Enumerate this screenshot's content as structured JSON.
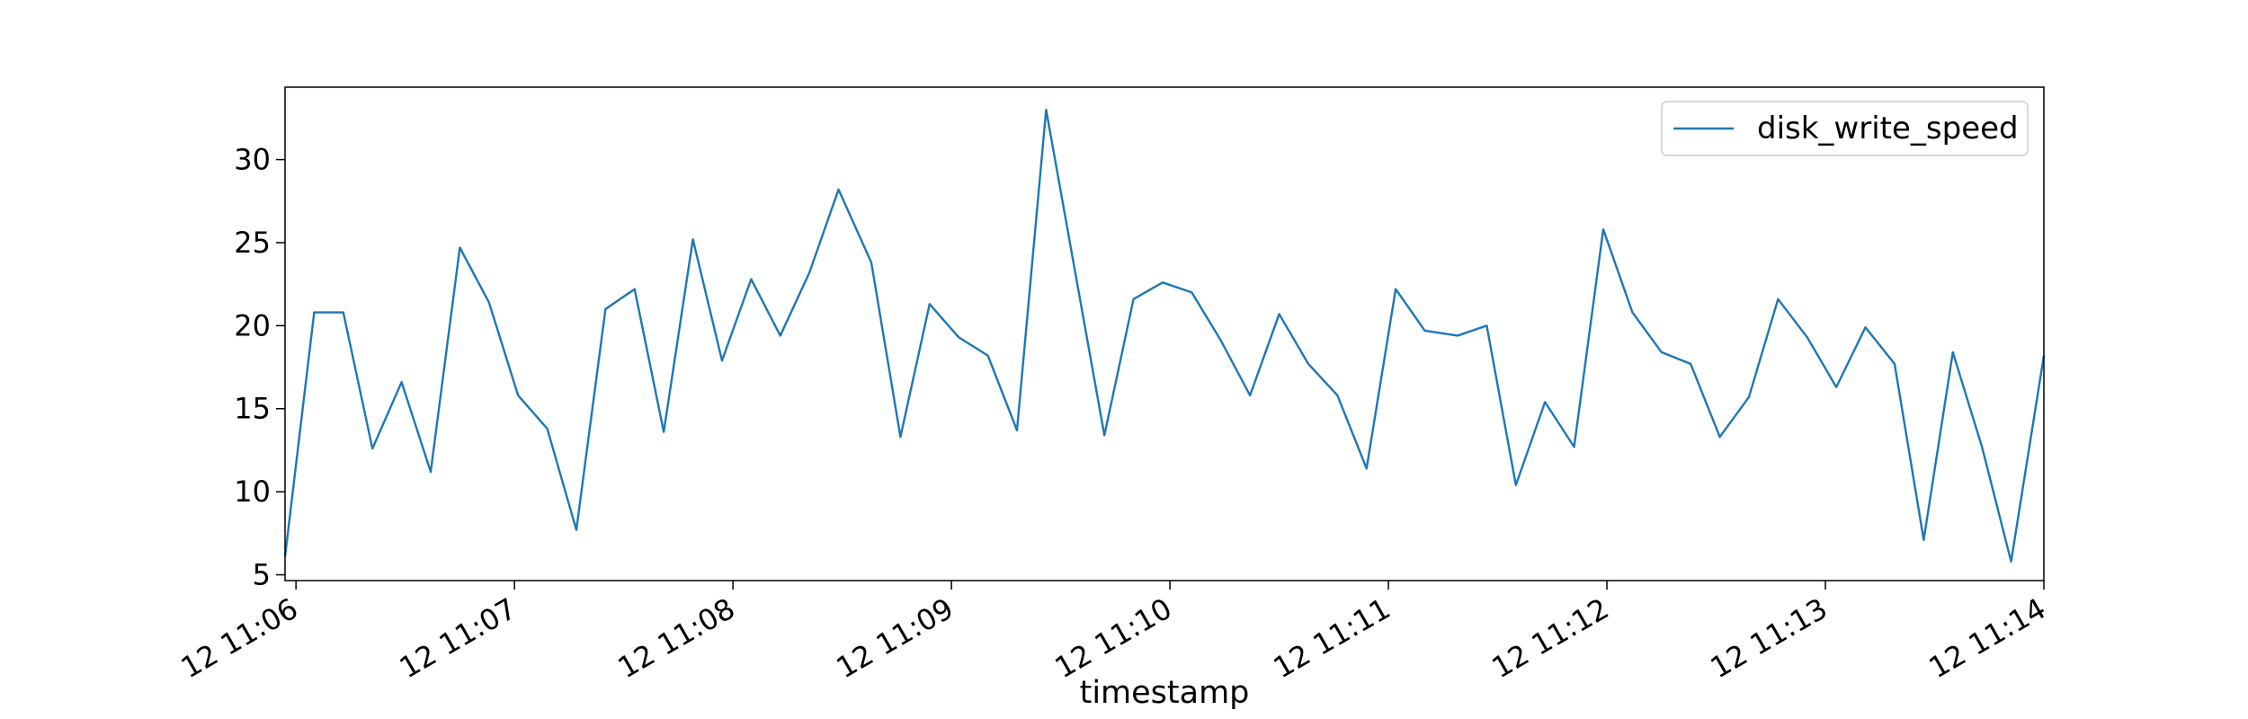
{
  "chart_data": {
    "type": "line",
    "xlabel": "timestamp",
    "x": [
      "12 11:05:57",
      "12 11:06:05",
      "12 11:06:13",
      "12 11:06:21",
      "12 11:06:29",
      "12 11:06:37",
      "12 11:06:45",
      "12 11:06:53",
      "12 11:07:01",
      "12 11:07:09",
      "12 11:07:17",
      "12 11:07:25",
      "12 11:07:33",
      "12 11:07:41",
      "12 11:07:49",
      "12 11:07:57",
      "12 11:08:05",
      "12 11:08:13",
      "12 11:08:21",
      "12 11:08:29",
      "12 11:08:38",
      "12 11:08:46",
      "12 11:08:54",
      "12 11:09:02",
      "12 11:09:10",
      "12 11:09:18",
      "12 11:09:26",
      "12 11:09:34",
      "12 11:09:42",
      "12 11:09:50",
      "12 11:09:58",
      "12 11:10:06",
      "12 11:10:14",
      "12 11:10:22",
      "12 11:10:30",
      "12 11:10:38",
      "12 11:10:46",
      "12 11:10:54",
      "12 11:11:02",
      "12 11:11:10",
      "12 11:11:19",
      "12 11:11:27",
      "12 11:11:35",
      "12 11:11:43",
      "12 11:11:51",
      "12 11:11:59",
      "12 11:12:07",
      "12 11:12:15",
      "12 11:12:23",
      "12 11:12:31",
      "12 11:12:39",
      "12 11:12:47",
      "12 11:12:55",
      "12 11:13:03",
      "12 11:13:11",
      "12 11:13:19",
      "12 11:13:27",
      "12 11:13:35",
      "12 11:13:43",
      "12 11:13:51",
      "12 11:14:00"
    ],
    "series": [
      {
        "name": "disk_write_speed",
        "color": "#1f77b4",
        "values": [
          6.1,
          20.8,
          20.8,
          12.6,
          16.6,
          11.2,
          24.7,
          21.4,
          15.8,
          13.8,
          7.7,
          21.0,
          22.2,
          13.6,
          25.2,
          17.9,
          22.8,
          19.4,
          23.2,
          28.2,
          23.8,
          13.3,
          21.3,
          19.3,
          18.2,
          13.7,
          33.0,
          23.2,
          13.4,
          21.6,
          22.6,
          22.0,
          19.1,
          15.8,
          20.7,
          17.7,
          15.8,
          11.4,
          22.2,
          19.7,
          19.4,
          20.0,
          10.4,
          15.4,
          12.7,
          25.8,
          20.8,
          18.4,
          17.7,
          13.3,
          15.7,
          21.6,
          19.3,
          16.3,
          19.9,
          17.7,
          7.1,
          18.4,
          12.7,
          5.8,
          18.2
        ]
      }
    ],
    "xlim": [
      "12 11:05:57",
      "12 11:14:00"
    ],
    "xticks": [
      "12 11:06",
      "12 11:07",
      "12 11:08",
      "12 11:09",
      "12 11:10",
      "12 11:11",
      "12 11:12",
      "12 11:13",
      "12 11:14"
    ],
    "ylim": [
      4.65,
      34.36
    ],
    "yticks": [
      5,
      10,
      15,
      20,
      25,
      30
    ],
    "legend": "upper right"
  }
}
